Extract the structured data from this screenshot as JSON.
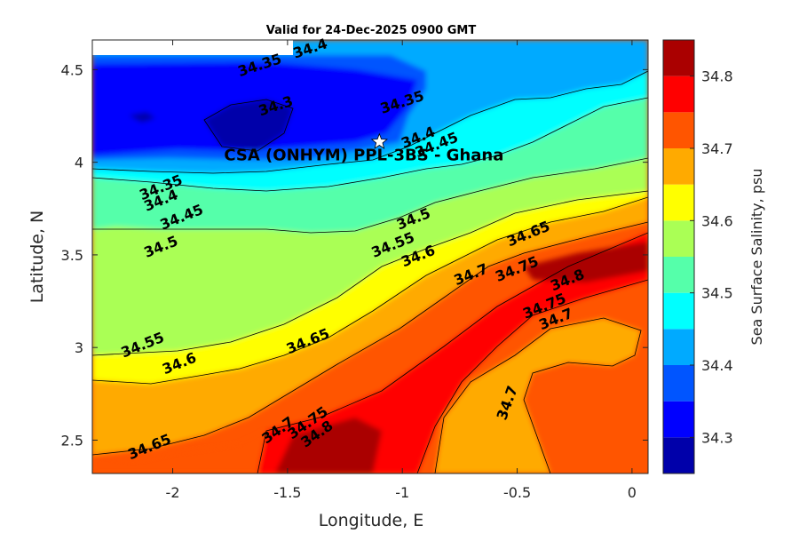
{
  "chart_data": {
    "type": "contour",
    "title": "Valid for 24-Dec-2025 0900 GMT",
    "xlabel": "Longitude, E",
    "ylabel": "Latitude, N",
    "colorbar_label": "Sea Surface Salinity, psu",
    "xlim": [
      -2.35,
      0.07
    ],
    "ylim": [
      2.32,
      4.66
    ],
    "x_ticks": [
      -2,
      -1.5,
      -1,
      -0.5,
      0
    ],
    "x_tick_labels": [
      "-2",
      "-1.5",
      "-1",
      "-0.5",
      "0"
    ],
    "y_ticks": [
      2.5,
      3,
      3.5,
      4,
      4.5
    ],
    "y_tick_labels": [
      "2.5",
      "3",
      "3.5",
      "4",
      "4.5"
    ],
    "levels": [
      34.25,
      34.3,
      34.35,
      34.4,
      34.45,
      34.5,
      34.55,
      34.6,
      34.65,
      34.7,
      34.75,
      34.8,
      34.85
    ],
    "level_colors": [
      "#0000aa",
      "#0000ff",
      "#0055ff",
      "#00aaff",
      "#00ffff",
      "#55ffaa",
      "#aaff55",
      "#ffff00",
      "#ffaa00",
      "#ff5500",
      "#ff0000",
      "#aa0000"
    ],
    "colorbar_ticks": [
      34.3,
      34.4,
      34.5,
      34.6,
      34.7,
      34.8
    ],
    "colorbar_tick_labels": [
      "34.3",
      "34.4",
      "34.5",
      "34.6",
      "34.7",
      "34.8"
    ],
    "contour_labels": [
      {
        "text": "34.35",
        "lon": -1.62,
        "lat": 4.52
      },
      {
        "text": "34.4",
        "lon": -1.4,
        "lat": 4.61
      },
      {
        "text": "34.3",
        "lon": -1.55,
        "lat": 4.3
      },
      {
        "text": "34.35",
        "lon": -1.0,
        "lat": 4.32
      },
      {
        "text": "34.4",
        "lon": -0.93,
        "lat": 4.13
      },
      {
        "text": "34.45",
        "lon": -0.85,
        "lat": 4.09
      },
      {
        "text": "34.35",
        "lon": -2.05,
        "lat": 3.86
      },
      {
        "text": "34.4",
        "lon": -2.05,
        "lat": 3.79
      },
      {
        "text": "34.45",
        "lon": -1.96,
        "lat": 3.7
      },
      {
        "text": "34.5",
        "lon": -2.05,
        "lat": 3.54
      },
      {
        "text": "34.5",
        "lon": -0.95,
        "lat": 3.69
      },
      {
        "text": "34.55",
        "lon": -1.04,
        "lat": 3.55
      },
      {
        "text": "34.6",
        "lon": -0.93,
        "lat": 3.49
      },
      {
        "text": "34.65",
        "lon": -0.45,
        "lat": 3.61
      },
      {
        "text": "34.7",
        "lon": -0.7,
        "lat": 3.39
      },
      {
        "text": "34.75",
        "lon": -0.5,
        "lat": 3.42
      },
      {
        "text": "34.8",
        "lon": -0.28,
        "lat": 3.36
      },
      {
        "text": "34.75",
        "lon": -0.38,
        "lat": 3.22
      },
      {
        "text": "34.7",
        "lon": -0.33,
        "lat": 3.15
      },
      {
        "text": "34.55",
        "lon": -2.13,
        "lat": 3.01
      },
      {
        "text": "34.6",
        "lon": -1.97,
        "lat": 2.91
      },
      {
        "text": "34.65",
        "lon": -1.41,
        "lat": 3.03
      },
      {
        "text": "34.7",
        "lon": -1.54,
        "lat": 2.55
      },
      {
        "text": "34.75",
        "lon": -1.41,
        "lat": 2.59
      },
      {
        "text": "34.8",
        "lon": -1.37,
        "lat": 2.53
      },
      {
        "text": "34.65",
        "lon": -2.1,
        "lat": 2.46
      },
      {
        "text": "34.7",
        "lon": -0.54,
        "lat": 2.7
      }
    ],
    "site": {
      "name": "CSA (ONHYM) PPL-3BS  - Ghana",
      "lon": -1.1,
      "lat": 4.11
    }
  }
}
